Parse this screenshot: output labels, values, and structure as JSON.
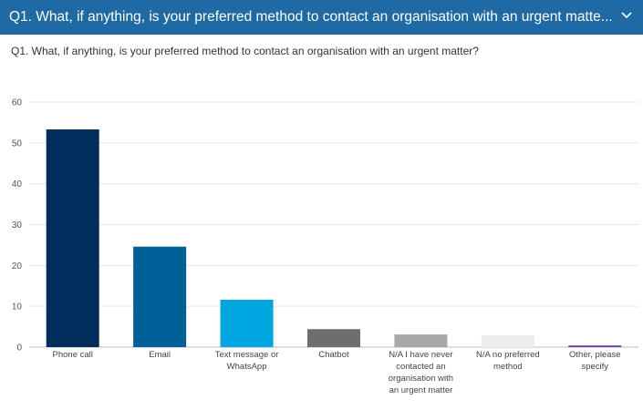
{
  "header": {
    "title": "Q1. What, if anything, is your preferred method to contact an organisation with an urgent matte...",
    "expand_icon": "chevron-down-icon"
  },
  "chart_data": {
    "type": "bar",
    "title": "Q1. What, if anything, is your preferred method to contact an organisation with an urgent matter?",
    "xlabel": "",
    "ylabel": "",
    "ylim": [
      0,
      60
    ],
    "yticks": [
      0,
      10,
      20,
      30,
      40,
      50,
      60
    ],
    "grid": true,
    "categories": [
      [
        "Phone call"
      ],
      [
        "Email"
      ],
      [
        "Text message or",
        "WhatsApp"
      ],
      [
        "Chatbot"
      ],
      [
        "N/A I have never",
        "contacted an",
        "organisation with",
        "an urgent matter"
      ],
      [
        "N/A no preferred",
        "method"
      ],
      [
        "Other, please",
        "specify"
      ]
    ],
    "values": [
      53.3,
      24.6,
      11.6,
      4.4,
      3.1,
      2.9,
      0.4
    ],
    "colors": [
      "#002d5c",
      "#006199",
      "#00a6e0",
      "#6e6e6e",
      "#a8a8a8",
      "#ececec",
      "#6a3d9a"
    ]
  }
}
